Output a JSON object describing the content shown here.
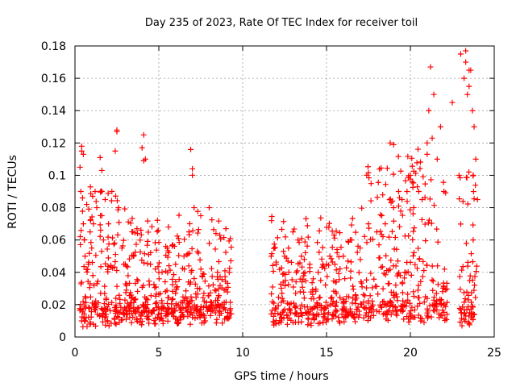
{
  "chart_data": {
    "type": "scatter",
    "title": "Day 235 of 2023, Rate Of TEC Index for receiver toil",
    "xlabel": "GPS time / hours",
    "ylabel": "ROTI / TECUs",
    "xlim": [
      0,
      25
    ],
    "ylim": [
      0,
      0.18
    ],
    "x_ticks": [
      "0",
      "5",
      "10",
      "15",
      "20",
      "25"
    ],
    "y_ticks": [
      "0",
      "0.02",
      "0.04",
      "0.06",
      "0.08",
      "0.1",
      "0.12",
      "0.14",
      "0.16",
      "0.18"
    ],
    "grid": true,
    "marker": "+",
    "color": "#ff0000",
    "data_gap_hours": [
      9.3,
      11.7
    ],
    "series": [
      {
        "x": [
          0.3,
          0.35,
          0.4,
          0.45,
          0.5,
          0.5,
          0.55,
          0.6,
          0.7,
          0.8,
          0.9,
          1.0,
          1.1,
          1.2,
          1.3,
          1.5,
          1.6,
          1.7,
          1.8,
          2.0,
          2.2,
          2.4,
          2.5,
          2.6,
          2.8,
          3.0,
          3.5,
          4.0,
          4.1,
          4.2,
          4.5,
          5.0,
          5.5,
          6.0,
          6.5,
          6.8,
          6.9,
          7.0,
          7.1,
          7.5,
          8.0,
          8.5,
          9.0,
          9.2,
          11.7,
          12.0,
          12.5,
          13.0,
          13.3,
          13.5,
          14.0,
          14.5,
          15.0,
          15.2,
          15.5,
          16.0,
          16.5,
          17.0,
          17.5,
          18.0,
          18.5,
          18.8,
          19.0,
          19.3,
          19.5,
          19.8,
          20.0,
          20.2,
          20.5,
          20.7,
          21.0,
          21.1,
          21.2,
          21.4,
          21.6,
          21.8,
          22.0,
          22.5,
          22.9,
          23.0,
          23.2,
          23.3,
          23.4,
          23.5,
          23.6,
          23.7,
          23.8,
          23.9,
          24.0,
          0.4,
          1.6,
          2.5,
          4.1,
          7.0,
          19.0,
          21.0,
          21.3,
          23.3,
          23.5
        ],
        "y": [
          0.105,
          0.09,
          0.118,
          0.086,
          0.113,
          0.07,
          0.06,
          0.05,
          0.082,
          0.045,
          0.065,
          0.055,
          0.07,
          0.09,
          0.08,
          0.111,
          0.09,
          0.06,
          0.085,
          0.07,
          0.09,
          0.115,
          0.128,
          0.08,
          0.055,
          0.045,
          0.05,
          0.117,
          0.125,
          0.11,
          0.045,
          0.04,
          0.055,
          0.045,
          0.05,
          0.065,
          0.116,
          0.1,
          0.08,
          0.075,
          0.08,
          0.04,
          0.067,
          0.04,
          0.05,
          0.045,
          0.05,
          0.065,
          0.06,
          0.05,
          0.045,
          0.04,
          0.045,
          0.05,
          0.045,
          0.05,
          0.06,
          0.055,
          0.07,
          0.065,
          0.07,
          0.12,
          0.08,
          0.09,
          0.085,
          0.09,
          0.1,
          0.08,
          0.09,
          0.085,
          0.12,
          0.14,
          0.167,
          0.15,
          0.11,
          0.13,
          0.09,
          0.145,
          0.1,
          0.175,
          0.16,
          0.17,
          0.15,
          0.155,
          0.165,
          0.14,
          0.13,
          0.11,
          0.085,
          0.115,
          0.103,
          0.127,
          0.109,
          0.104,
          0.119,
          0.113,
          0.123,
          0.177,
          0.165
        ]
      }
    ]
  }
}
